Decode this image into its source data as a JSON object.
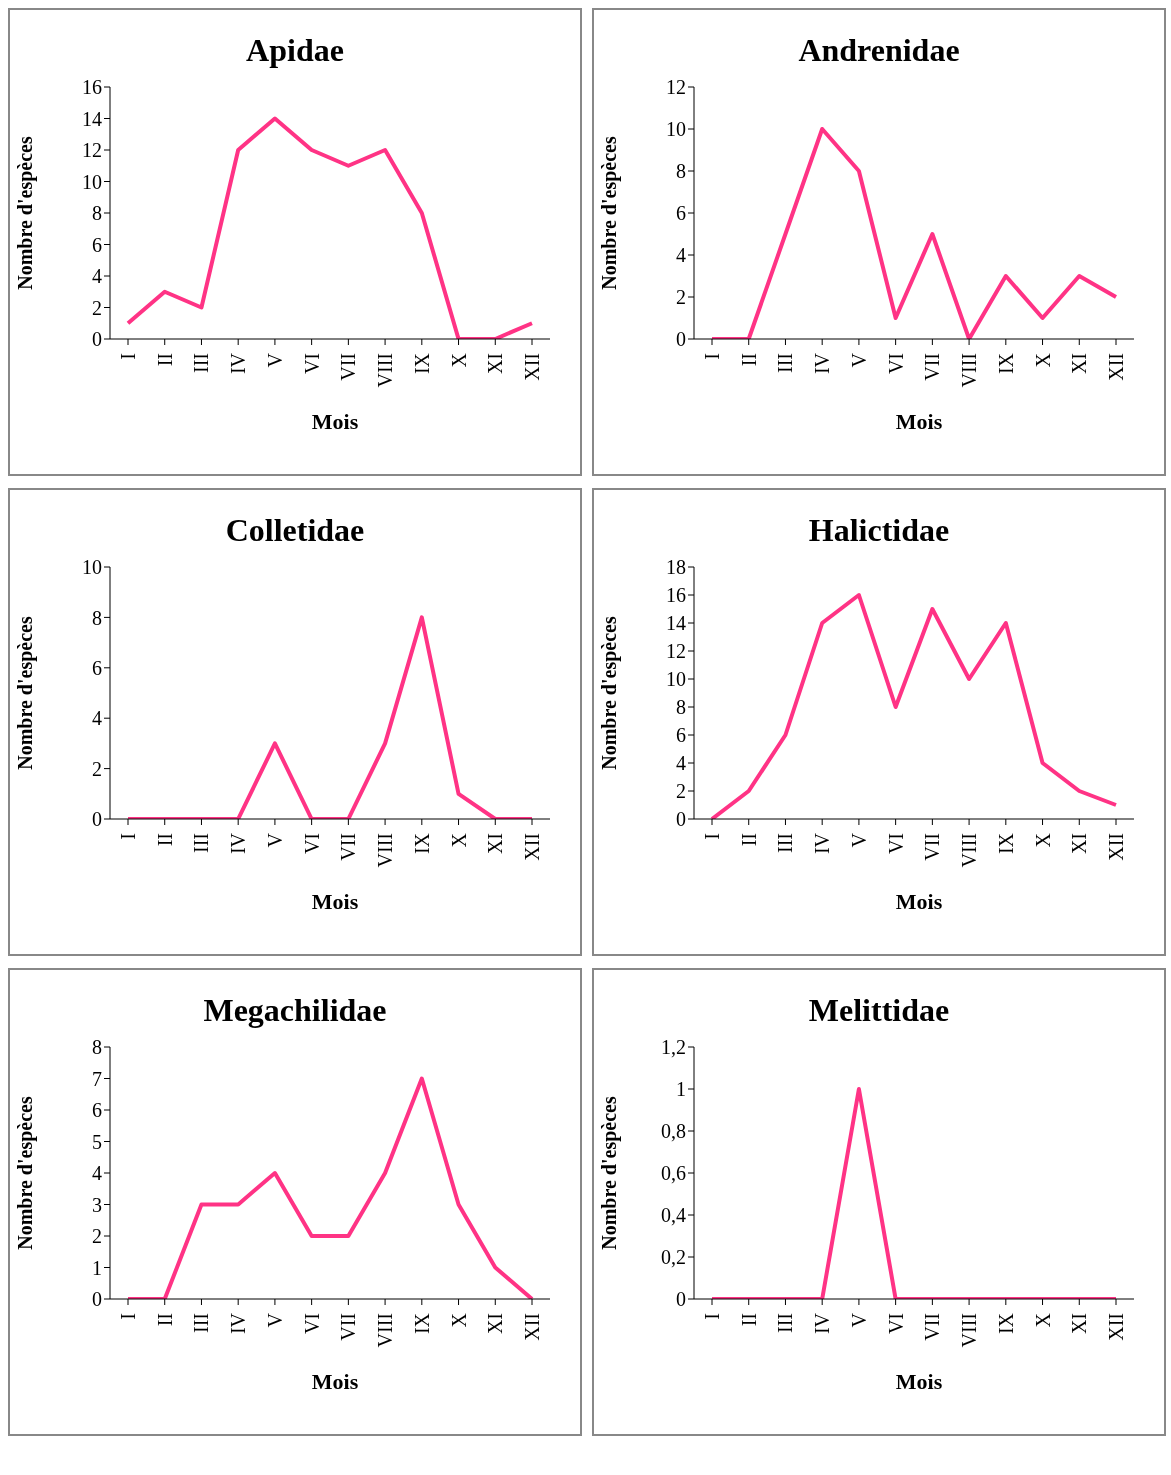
{
  "chart_data": [
    {
      "type": "line",
      "title": "Apidae",
      "xlabel": "Mois",
      "ylabel": "Nombre d'espèces",
      "categories": [
        "I",
        "II",
        "III",
        "IV",
        "V",
        "VI",
        "VII",
        "VIII",
        "IX",
        "X",
        "XI",
        "XII"
      ],
      "series": [
        {
          "color": "#ff3385",
          "values": [
            1,
            3,
            2,
            12,
            14,
            12,
            11,
            12,
            8,
            0,
            0,
            1
          ]
        }
      ],
      "ylim": [
        0,
        16
      ],
      "yticks": [
        0,
        2,
        4,
        6,
        8,
        10,
        12,
        14,
        16
      ]
    },
    {
      "type": "line",
      "title": "Andrenidae",
      "xlabel": "Mois",
      "ylabel": "Nombre d'espèces",
      "categories": [
        "I",
        "II",
        "III",
        "IV",
        "V",
        "VI",
        "VII",
        "VIII",
        "IX",
        "X",
        "XI",
        "XII"
      ],
      "series": [
        {
          "color": "#ff3385",
          "values": [
            0,
            0,
            5,
            10,
            8,
            1,
            5,
            0,
            3,
            1,
            3,
            2
          ]
        }
      ],
      "ylim": [
        0,
        12
      ],
      "yticks": [
        0,
        2,
        4,
        6,
        8,
        10,
        12
      ]
    },
    {
      "type": "line",
      "title": "Colletidae",
      "xlabel": "Mois",
      "ylabel": "Nombre d'espèces",
      "categories": [
        "I",
        "II",
        "III",
        "IV",
        "V",
        "VI",
        "VII",
        "VIII",
        "IX",
        "X",
        "XI",
        "XII"
      ],
      "series": [
        {
          "color": "#ff3385",
          "values": [
            0,
            0,
            0,
            0,
            3,
            0,
            0,
            3,
            8,
            1,
            0,
            0
          ]
        }
      ],
      "ylim": [
        0,
        10
      ],
      "yticks": [
        0,
        2,
        4,
        6,
        8,
        10
      ]
    },
    {
      "type": "line",
      "title": "Halictidae",
      "xlabel": "Mois",
      "ylabel": "Nombre d'espèces",
      "categories": [
        "I",
        "II",
        "III",
        "IV",
        "V",
        "VI",
        "VII",
        "VIII",
        "IX",
        "X",
        "XI",
        "XII"
      ],
      "series": [
        {
          "color": "#ff3385",
          "values": [
            0,
            2,
            6,
            14,
            16,
            8,
            15,
            10,
            14,
            4,
            2,
            1
          ]
        }
      ],
      "ylim": [
        0,
        18
      ],
      "yticks": [
        0,
        2,
        4,
        6,
        8,
        10,
        12,
        14,
        16,
        18
      ]
    },
    {
      "type": "line",
      "title": "Megachilidae",
      "xlabel": "Mois",
      "ylabel": "Nombre d'espèces",
      "categories": [
        "I",
        "II",
        "III",
        "IV",
        "V",
        "VI",
        "VII",
        "VIII",
        "IX",
        "X",
        "XI",
        "XII"
      ],
      "series": [
        {
          "color": "#ff3385",
          "values": [
            0,
            0,
            3,
            3,
            4,
            2,
            2,
            4,
            7,
            3,
            1,
            0
          ]
        }
      ],
      "ylim": [
        0,
        8
      ],
      "yticks": [
        0,
        1,
        2,
        3,
        4,
        5,
        6,
        7,
        8
      ]
    },
    {
      "type": "line",
      "title": "Melittidae",
      "xlabel": "Mois",
      "ylabel": "Nombre d'espèces",
      "categories": [
        "I",
        "II",
        "III",
        "IV",
        "V",
        "VI",
        "VII",
        "VIII",
        "IX",
        "X",
        "XI",
        "XII"
      ],
      "series": [
        {
          "color": "#ff3385",
          "values": [
            0,
            0,
            0,
            0,
            1,
            0,
            0,
            0,
            0,
            0,
            0,
            0
          ]
        }
      ],
      "ylim": [
        0,
        1.2
      ],
      "yticks": [
        0,
        {
          "value": 0.2,
          "label": "0,2"
        },
        {
          "value": 0.4,
          "label": "0,4"
        },
        {
          "value": 0.6,
          "label": "0,6"
        },
        {
          "value": 0.8,
          "label": "0,8"
        },
        1,
        {
          "value": 1.2,
          "label": "1,2"
        }
      ]
    }
  ]
}
